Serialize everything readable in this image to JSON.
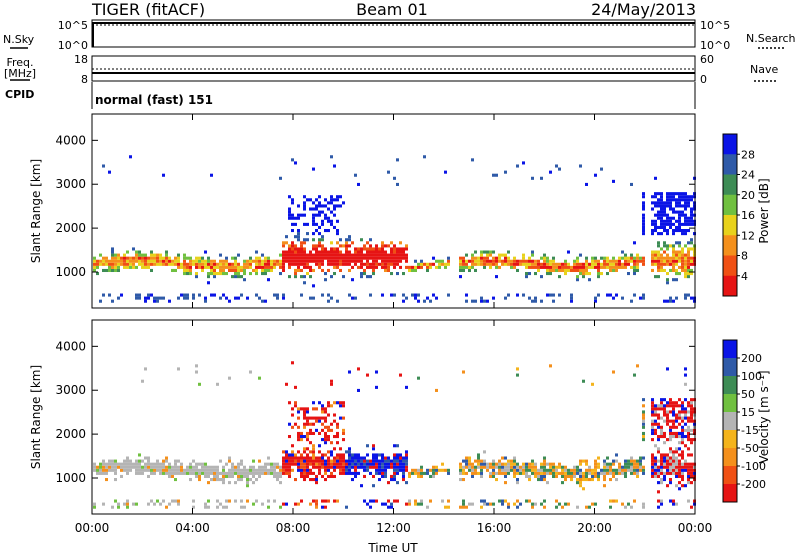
{
  "header": {
    "left": "TIGER (fitACF)",
    "center": "Beam 01",
    "right": "24/May/2013"
  },
  "nsky_panel": {
    "label": "N.Sky",
    "right_label": "N.Search",
    "ticks_left": [
      "10^5",
      "10^0"
    ],
    "ticks_right": [
      "10^5",
      "10^0"
    ]
  },
  "freq_panel": {
    "label_line1": "Freq.",
    "label_line2": "[MHz]",
    "right_label": "Nave",
    "ticks_left": [
      "18",
      "8"
    ],
    "ticks_right": [
      "60",
      "0"
    ]
  },
  "cpid_panel": {
    "label": "CPID",
    "mode_text": "normal (fast) 151"
  },
  "chart_data": [
    {
      "type": "heatmap",
      "name": "Power",
      "ylabel": "Slant Range [km]",
      "xlabel": "",
      "x_range_hours": [
        0,
        24
      ],
      "x_tick_labels": [
        "00:00",
        "04:00",
        "08:00",
        "12:00",
        "16:00",
        "20:00",
        "00:00"
      ],
      "ylim": [
        180,
        4600
      ],
      "y_ticks": [
        1000,
        2000,
        3000,
        4000
      ],
      "colorbar": {
        "label": "Power [dB]",
        "colors": [
          "#0a14e6",
          "#2f5aa8",
          "#3d8c55",
          "#70c040",
          "#e8d21c",
          "#f4901c",
          "#f05014",
          "#e61414"
        ],
        "tick_labels": [
          "4",
          "8",
          "12",
          "16",
          "20",
          "24",
          "28"
        ]
      }
    },
    {
      "type": "heatmap",
      "name": "Velocity",
      "ylabel": "Slant Range [km]",
      "xlabel": "Time UT",
      "x_range_hours": [
        0,
        24
      ],
      "x_tick_labels": [
        "00:00",
        "04:00",
        "08:00",
        "12:00",
        "16:00",
        "20:00",
        "00:00"
      ],
      "ylim": [
        180,
        4600
      ],
      "y_ticks": [
        1000,
        2000,
        3000,
        4000
      ],
      "colorbar": {
        "label": "Velocity [m s⁻¹]",
        "colors": [
          "#0a14e6",
          "#2f5aa8",
          "#3d8c55",
          "#70c040",
          "#b4b4b4",
          "#f4b41c",
          "#f4901c",
          "#f05014",
          "#e61414"
        ],
        "tick_labels": [
          "200",
          "100",
          "50",
          "15",
          "-15",
          "-50",
          "-100",
          "-200"
        ]
      }
    }
  ]
}
